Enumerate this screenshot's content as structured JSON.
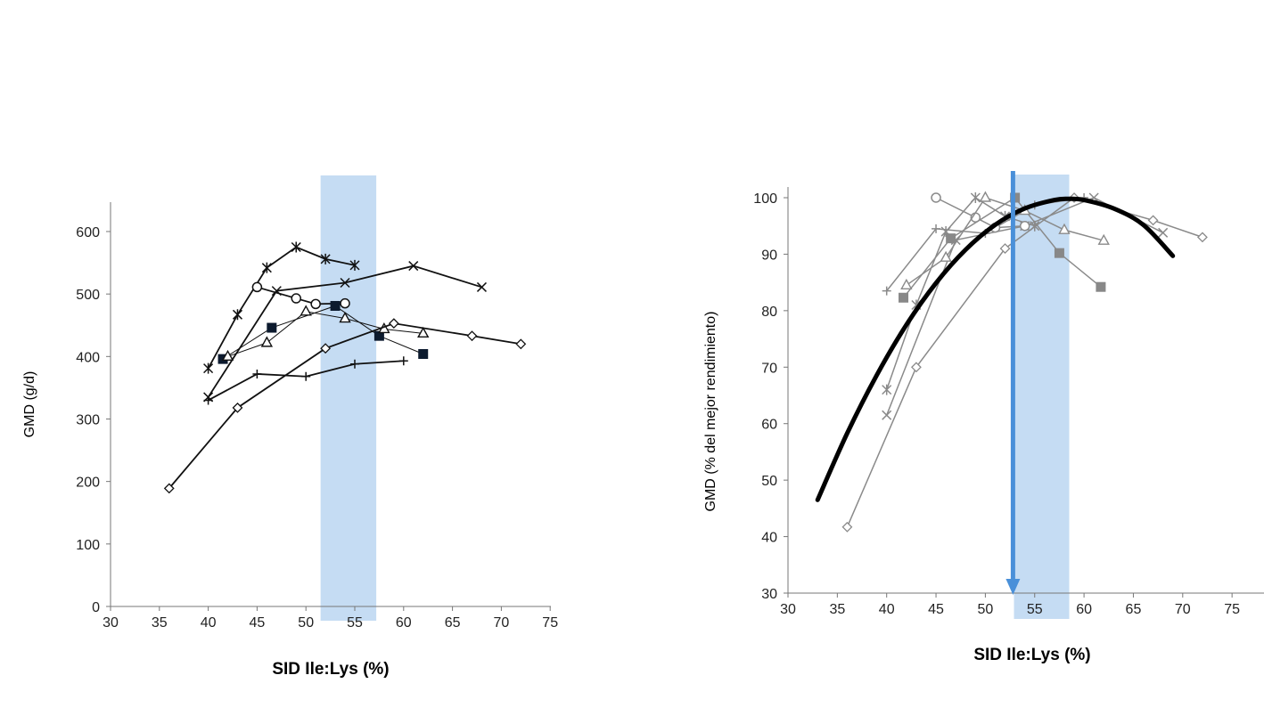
{
  "chart_data": [
    {
      "type": "line",
      "xlabel": "SID Ile:Lys (%)",
      "ylabel": "GMD (g/d)",
      "xlim": [
        30,
        75
      ],
      "ylim": [
        0,
        650
      ],
      "xticks": [
        30,
        35,
        40,
        45,
        50,
        55,
        60,
        65,
        70,
        75
      ],
      "yticks": [
        0,
        100,
        200,
        300,
        400,
        500,
        600
      ],
      "grid": false,
      "highlight_band": {
        "x": [
          51.5,
          57.2
        ],
        "color": "#c5dcf3"
      },
      "series": [
        {
          "marker": "asterisk",
          "width": 1.8,
          "points": [
            [
              40,
              381
            ],
            [
              43,
              467
            ],
            [
              46,
              542
            ],
            [
              49,
              575
            ],
            [
              52,
              556
            ],
            [
              55,
              546
            ]
          ]
        },
        {
          "marker": "x",
          "width": 1.8,
          "points": [
            [
              40,
              335
            ],
            [
              47,
              505
            ],
            [
              54,
              518
            ],
            [
              61,
              545
            ],
            [
              68,
              511
            ]
          ]
        },
        {
          "marker": "circle",
          "width": 1.8,
          "points": [
            [
              45,
              511
            ],
            [
              49,
              493
            ],
            [
              51,
              484
            ],
            [
              54,
              485
            ]
          ]
        },
        {
          "marker": "square",
          "width": 1,
          "points": [
            [
              41.5,
              396
            ],
            [
              46.5,
              446
            ],
            [
              53,
              481
            ],
            [
              57.5,
              433
            ],
            [
              62,
              404
            ]
          ]
        },
        {
          "marker": "triangle",
          "width": 1,
          "points": [
            [
              42,
              400
            ],
            [
              46,
              422
            ],
            [
              50,
              472
            ],
            [
              54,
              461
            ],
            [
              58,
              444
            ],
            [
              62,
              437
            ]
          ]
        },
        {
          "marker": "plus",
          "width": 1.8,
          "points": [
            [
              40,
              330
            ],
            [
              45,
              372
            ],
            [
              50,
              368
            ],
            [
              55,
              388
            ],
            [
              60,
              393
            ]
          ]
        },
        {
          "marker": "diamond",
          "width": 1.8,
          "points": [
            [
              36,
              189
            ],
            [
              43,
              318
            ],
            [
              52,
              413
            ],
            [
              59,
              453
            ],
            [
              67,
              433
            ],
            [
              72,
              420
            ]
          ]
        }
      ]
    },
    {
      "type": "line",
      "xlabel": "SID Ile:Lys (%)",
      "ylabel": "GMD (% del mejor rendimiento)",
      "xlim": [
        30,
        78
      ],
      "ylim": [
        30,
        102
      ],
      "xticks": [
        30,
        35,
        40,
        45,
        50,
        55,
        60,
        65,
        70,
        75
      ],
      "yticks": [
        30,
        40,
        50,
        60,
        70,
        80,
        90,
        100
      ],
      "grid": false,
      "highlight_band": {
        "x": [
          52.9,
          58.5
        ],
        "color": "#c5dcf3"
      },
      "arrow": {
        "x": 52.8,
        "color": "#4a90d9"
      },
      "series": [
        {
          "marker": "diamond",
          "points": [
            [
              36,
              41.7
            ],
            [
              43,
              70
            ],
            [
              52,
              91
            ],
            [
              59,
              100
            ],
            [
              67,
              96
            ],
            [
              72,
              93
            ]
          ]
        },
        {
          "marker": "plus",
          "points": [
            [
              40,
              83.5
            ],
            [
              45,
              94.5
            ],
            [
              50,
              93.7
            ],
            [
              55,
              98.7
            ],
            [
              60,
              100
            ]
          ]
        },
        {
          "marker": "x",
          "points": [
            [
              40,
              61.5
            ],
            [
              47,
              92.5
            ],
            [
              54,
              95
            ],
            [
              61,
              100
            ],
            [
              68,
              93.8
            ]
          ]
        },
        {
          "marker": "asterisk",
          "points": [
            [
              40,
              66
            ],
            [
              43,
              81
            ],
            [
              46,
              94
            ],
            [
              49,
              100
            ],
            [
              52,
              96.7
            ],
            [
              55,
              95
            ]
          ]
        },
        {
          "marker": "circle",
          "points": [
            [
              45,
              100
            ],
            [
              49,
              96.5
            ],
            [
              51,
              94.7
            ],
            [
              54,
              95
            ]
          ]
        },
        {
          "marker": "square",
          "points": [
            [
              41.7,
              82.3
            ],
            [
              46.5,
              92.8
            ],
            [
              53,
              100
            ],
            [
              57.5,
              90.2
            ],
            [
              61.7,
              84.2
            ]
          ]
        },
        {
          "marker": "triangle",
          "points": [
            [
              42,
              84.5
            ],
            [
              46,
              89.4
            ],
            [
              50,
              100
            ],
            [
              54,
              97.7
            ],
            [
              58,
              94.3
            ],
            [
              62,
              92.4
            ]
          ]
        }
      ],
      "fit_curve": [
        [
          33,
          46.5
        ],
        [
          36,
          58.3
        ],
        [
          39,
          68.6
        ],
        [
          42,
          77.5
        ],
        [
          45,
          84.9
        ],
        [
          48,
          90.8
        ],
        [
          51,
          95.2
        ],
        [
          54,
          98.1
        ],
        [
          57,
          99.6
        ],
        [
          58.5,
          99.8
        ],
        [
          60,
          99.6
        ],
        [
          63,
          98.1
        ],
        [
          66,
          95.2
        ],
        [
          69,
          89.7
        ]
      ]
    }
  ]
}
